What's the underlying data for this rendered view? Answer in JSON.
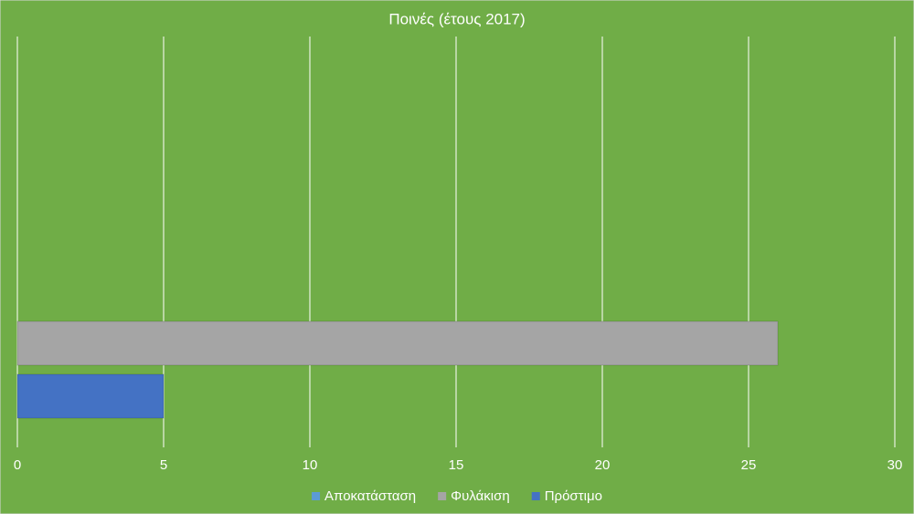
{
  "chart_data": {
    "type": "hbar",
    "title": "Ποινές (έτους 2017)",
    "categories": [
      null
    ],
    "series": [
      {
        "name": "Αποκατάσταση",
        "color": "#5b9bd5",
        "values": [
          0
        ]
      },
      {
        "name": "Φυλάκιση",
        "color": "#a5a5a5",
        "values": [
          26
        ]
      },
      {
        "name": "Πρόστιμο",
        "color": "#4472c4",
        "values": [
          5
        ]
      }
    ],
    "xlim": [
      0,
      30
    ],
    "xticks": [
      0,
      5,
      10,
      15,
      20,
      25,
      30
    ],
    "grid": true,
    "legend": "bottom"
  }
}
